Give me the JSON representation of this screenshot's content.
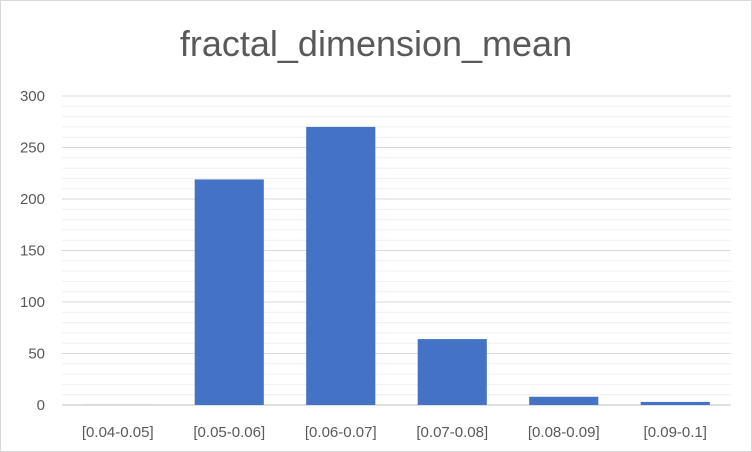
{
  "chart_data": {
    "type": "bar",
    "title": "fractal_dimension_mean",
    "xlabel": "",
    "ylabel": "",
    "categories": [
      "[0.04-0.05]",
      "[0.05-0.06]",
      "[0.06-0.07]",
      "[0.07-0.08]",
      "[0.08-0.09]",
      "[0.09-0.1]"
    ],
    "values": [
      1,
      219,
      270,
      64,
      8,
      3
    ],
    "ylim": [
      0,
      300
    ],
    "yticks": [
      0,
      50,
      100,
      150,
      200,
      250,
      300
    ],
    "grid": true,
    "legend": "none",
    "colors": {
      "bar": "#4472C4",
      "first_bar": "#D9D9D9",
      "grid": "#D9D9D9",
      "text": "#595959"
    }
  }
}
